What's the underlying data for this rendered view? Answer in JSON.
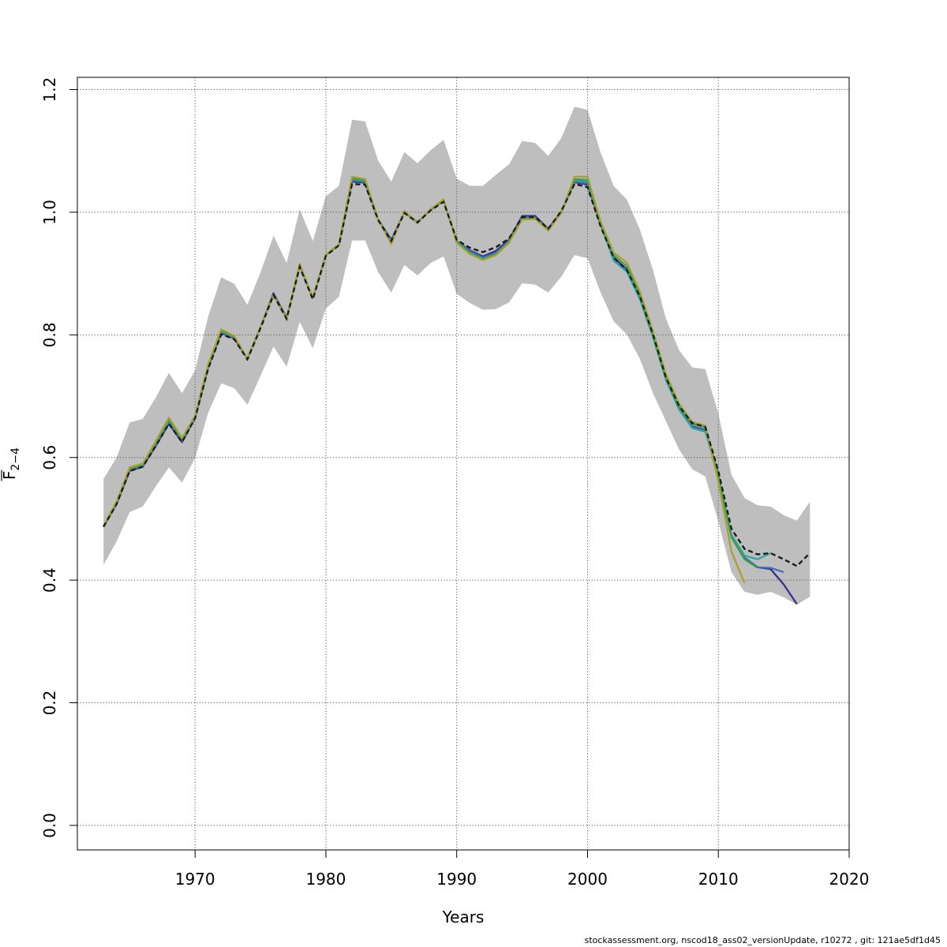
{
  "chart_data": {
    "type": "line",
    "xlabel": "Years",
    "ylabel_main": "F",
    "ylabel_sub": "2−4",
    "xlim": [
      1961,
      2020
    ],
    "ylim": [
      -0.04,
      1.22
    ],
    "x_ticks": [
      1970,
      1980,
      1990,
      2000,
      2010,
      2020
    ],
    "y_ticks": [
      0.0,
      0.2,
      0.4,
      0.6,
      0.8,
      1.0,
      1.2
    ],
    "x_tick_labels": [
      "1970",
      "1980",
      "1990",
      "2000",
      "2010",
      "2020"
    ],
    "y_tick_labels": [
      "0.0",
      "0.2",
      "0.4",
      "0.6",
      "0.8",
      "1.0",
      "1.2"
    ],
    "grid": true,
    "band_color": "#bebebe",
    "band": {
      "x": [
        1963,
        1964,
        1965,
        1966,
        1967,
        1968,
        1969,
        1970,
        1971,
        1972,
        1973,
        1974,
        1975,
        1976,
        1977,
        1978,
        1979,
        1980,
        1981,
        1982,
        1983,
        1984,
        1985,
        1986,
        1987,
        1988,
        1989,
        1990,
        1991,
        1992,
        1993,
        1994,
        1995,
        1996,
        1997,
        1998,
        1999,
        2000,
        2001,
        2002,
        2003,
        2004,
        2005,
        2006,
        2007,
        2008,
        2009,
        2010,
        2011,
        2012,
        2013,
        2014,
        2015,
        2016,
        2017
      ],
      "upper": [
        0.565,
        0.6,
        0.657,
        0.663,
        0.698,
        0.738,
        0.705,
        0.742,
        0.83,
        0.894,
        0.883,
        0.849,
        0.902,
        0.962,
        0.917,
        1.005,
        0.953,
        1.026,
        1.043,
        1.151,
        1.148,
        1.084,
        1.05,
        1.098,
        1.08,
        1.101,
        1.118,
        1.055,
        1.043,
        1.043,
        1.061,
        1.078,
        1.116,
        1.113,
        1.092,
        1.121,
        1.172,
        1.167,
        1.097,
        1.043,
        1.021,
        0.972,
        0.906,
        0.826,
        0.775,
        0.747,
        0.744,
        0.672,
        0.572,
        0.534,
        0.522,
        0.52,
        0.506,
        0.497,
        0.528
      ],
      "lower": [
        0.425,
        0.463,
        0.511,
        0.52,
        0.553,
        0.584,
        0.559,
        0.599,
        0.673,
        0.721,
        0.713,
        0.686,
        0.733,
        0.781,
        0.748,
        0.821,
        0.778,
        0.843,
        0.862,
        0.954,
        0.954,
        0.902,
        0.869,
        0.914,
        0.897,
        0.917,
        0.928,
        0.867,
        0.852,
        0.841,
        0.842,
        0.853,
        0.884,
        0.882,
        0.869,
        0.895,
        0.93,
        0.925,
        0.869,
        0.822,
        0.801,
        0.761,
        0.705,
        0.659,
        0.613,
        0.581,
        0.569,
        0.496,
        0.413,
        0.381,
        0.376,
        0.381,
        0.372,
        0.36,
        0.373
      ]
    },
    "series": [
      {
        "color": "#1a1a1a",
        "dashed": true,
        "width": 2.2,
        "x": [
          1963,
          1964,
          1965,
          1966,
          1967,
          1968,
          1969,
          1970,
          1971,
          1972,
          1973,
          1974,
          1975,
          1976,
          1977,
          1978,
          1979,
          1980,
          1981,
          1982,
          1983,
          1984,
          1985,
          1986,
          1987,
          1988,
          1989,
          1990,
          1991,
          1992,
          1993,
          1994,
          1995,
          1996,
          1997,
          1998,
          1999,
          2000,
          2001,
          2002,
          2003,
          2004,
          2005,
          2006,
          2007,
          2008,
          2009,
          2010,
          2011,
          2012,
          2013,
          2014,
          2015,
          2016,
          2017
        ],
        "y": [
          0.487,
          0.524,
          0.578,
          0.585,
          0.619,
          0.655,
          0.625,
          0.664,
          0.745,
          0.801,
          0.793,
          0.76,
          0.811,
          0.865,
          0.826,
          0.911,
          0.858,
          0.929,
          0.946,
          1.046,
          1.045,
          0.987,
          0.953,
          0.999,
          0.983,
          1.003,
          1.017,
          0.955,
          0.942,
          0.935,
          0.943,
          0.957,
          0.992,
          0.992,
          0.973,
          1.002,
          1.046,
          1.041,
          0.977,
          0.926,
          0.906,
          0.863,
          0.801,
          0.73,
          0.684,
          0.656,
          0.65,
          0.578,
          0.484,
          0.451,
          0.442,
          0.444,
          0.434,
          0.423,
          0.444
        ]
      },
      {
        "color": "#3a2a8c",
        "dashed": false,
        "width": 2.2,
        "x": [
          1963,
          1964,
          1965,
          1966,
          1967,
          1968,
          1969,
          1970,
          1971,
          1972,
          1973,
          1974,
          1975,
          1976,
          1977,
          1978,
          1979,
          1980,
          1981,
          1982,
          1983,
          1984,
          1985,
          1986,
          1987,
          1988,
          1989,
          1990,
          1991,
          1992,
          1993,
          1994,
          1995,
          1996,
          1997,
          1998,
          1999,
          2000,
          2001,
          2002,
          2003,
          2004,
          2005,
          2006,
          2007,
          2008,
          2009,
          2010,
          2011,
          2012,
          2013,
          2014,
          2015,
          2016
        ],
        "y": [
          0.487,
          0.524,
          0.578,
          0.585,
          0.619,
          0.655,
          0.625,
          0.664,
          0.747,
          0.803,
          0.794,
          0.761,
          0.813,
          0.868,
          0.828,
          0.913,
          0.86,
          0.93,
          0.947,
          1.05,
          1.048,
          0.988,
          0.955,
          1.0,
          0.984,
          1.004,
          1.019,
          0.953,
          0.938,
          0.928,
          0.937,
          0.955,
          0.994,
          0.994,
          0.973,
          1.001,
          1.049,
          1.045,
          0.979,
          0.926,
          0.907,
          0.862,
          0.799,
          0.727,
          0.68,
          0.651,
          0.645,
          0.57,
          0.47,
          0.437,
          0.421,
          0.418,
          0.393,
          0.361
        ]
      },
      {
        "color": "#3c6fb0",
        "dashed": false,
        "width": 2.2,
        "x": [
          1963,
          1964,
          1965,
          1966,
          1967,
          1968,
          1969,
          1970,
          1971,
          1972,
          1973,
          1974,
          1975,
          1976,
          1977,
          1978,
          1979,
          1980,
          1981,
          1982,
          1983,
          1984,
          1985,
          1986,
          1987,
          1988,
          1989,
          1990,
          1991,
          1992,
          1993,
          1994,
          1995,
          1996,
          1997,
          1998,
          1999,
          2000,
          2001,
          2002,
          2003,
          2004,
          2005,
          2006,
          2007,
          2008,
          2009,
          2010,
          2011,
          2012,
          2013,
          2014,
          2015
        ],
        "y": [
          0.487,
          0.525,
          0.579,
          0.586,
          0.621,
          0.658,
          0.627,
          0.665,
          0.748,
          0.804,
          0.795,
          0.761,
          0.813,
          0.866,
          0.827,
          0.913,
          0.86,
          0.93,
          0.947,
          1.052,
          1.049,
          0.988,
          0.953,
          1.001,
          0.984,
          1.004,
          1.019,
          0.953,
          0.937,
          0.926,
          0.934,
          0.953,
          0.992,
          0.992,
          0.972,
          1.0,
          1.05,
          1.047,
          0.979,
          0.923,
          0.905,
          0.86,
          0.798,
          0.727,
          0.679,
          0.65,
          0.644,
          0.57,
          0.47,
          0.437,
          0.421,
          0.42,
          0.413
        ]
      },
      {
        "color": "#2aa6a0",
        "dashed": false,
        "width": 2.2,
        "x": [
          1963,
          1964,
          1965,
          1966,
          1967,
          1968,
          1969,
          1970,
          1971,
          1972,
          1973,
          1974,
          1975,
          1976,
          1977,
          1978,
          1979,
          1980,
          1981,
          1982,
          1983,
          1984,
          1985,
          1986,
          1987,
          1988,
          1989,
          1990,
          1991,
          1992,
          1993,
          1994,
          1995,
          1996,
          1997,
          1998,
          1999,
          2000,
          2001,
          2002,
          2003,
          2004,
          2005,
          2006,
          2007,
          2008,
          2009,
          2010,
          2011,
          2012,
          2013,
          2014
        ],
        "y": [
          0.488,
          0.526,
          0.581,
          0.588,
          0.623,
          0.661,
          0.629,
          0.666,
          0.749,
          0.806,
          0.796,
          0.761,
          0.813,
          0.866,
          0.827,
          0.914,
          0.86,
          0.93,
          0.947,
          1.054,
          1.051,
          0.988,
          0.951,
          1.001,
          0.983,
          1.004,
          1.02,
          0.952,
          0.934,
          0.924,
          0.932,
          0.952,
          0.99,
          0.99,
          0.971,
          1.0,
          1.052,
          1.05,
          0.98,
          0.921,
          0.903,
          0.858,
          0.796,
          0.726,
          0.678,
          0.648,
          0.642,
          0.571,
          0.474,
          0.44,
          0.434,
          0.444
        ]
      },
      {
        "color": "#3f9a4a",
        "dashed": false,
        "width": 2.2,
        "x": [
          1963,
          1964,
          1965,
          1966,
          1967,
          1968,
          1969,
          1970,
          1971,
          1972,
          1973,
          1974,
          1975,
          1976,
          1977,
          1978,
          1979,
          1980,
          1981,
          1982,
          1983,
          1984,
          1985,
          1986,
          1987,
          1988,
          1989,
          1990,
          1991,
          1992,
          1993,
          1994,
          1995,
          1996,
          1997,
          1998,
          1999,
          2000,
          2001,
          2002,
          2003,
          2004,
          2005,
          2006,
          2007,
          2008,
          2009,
          2010,
          2011,
          2012,
          2013
        ],
        "y": [
          0.488,
          0.527,
          0.582,
          0.589,
          0.625,
          0.663,
          0.63,
          0.667,
          0.75,
          0.807,
          0.797,
          0.761,
          0.813,
          0.866,
          0.827,
          0.914,
          0.86,
          0.93,
          0.947,
          1.055,
          1.052,
          0.988,
          0.95,
          1.001,
          0.983,
          1.004,
          1.02,
          0.951,
          0.933,
          0.923,
          0.931,
          0.951,
          0.989,
          0.99,
          0.971,
          1.0,
          1.054,
          1.053,
          0.982,
          0.93,
          0.912,
          0.866,
          0.8,
          0.731,
          0.683,
          0.655,
          0.649,
          0.573,
          0.47,
          0.434,
          0.42
        ]
      },
      {
        "color": "#a8a02c",
        "dashed": false,
        "width": 2.2,
        "x": [
          1963,
          1964,
          1965,
          1966,
          1967,
          1968,
          1969,
          1970,
          1971,
          1972,
          1973,
          1974,
          1975,
          1976,
          1977,
          1978,
          1979,
          1980,
          1981,
          1982,
          1983,
          1984,
          1985,
          1986,
          1987,
          1988,
          1989,
          1990,
          1991,
          1992,
          1993,
          1994,
          1995,
          1996,
          1997,
          1998,
          1999,
          2000,
          2001,
          2002,
          2003,
          2004,
          2005,
          2006,
          2007,
          2008,
          2009,
          2010,
          2011,
          2012
        ],
        "y": [
          0.489,
          0.528,
          0.584,
          0.59,
          0.627,
          0.665,
          0.632,
          0.668,
          0.752,
          0.809,
          0.798,
          0.761,
          0.813,
          0.865,
          0.826,
          0.916,
          0.86,
          0.931,
          0.948,
          1.058,
          1.054,
          0.988,
          0.948,
          1.002,
          0.983,
          1.005,
          1.021,
          0.95,
          0.932,
          0.922,
          0.93,
          0.95,
          0.988,
          0.989,
          0.97,
          0.999,
          1.058,
          1.058,
          0.985,
          0.934,
          0.918,
          0.871,
          0.806,
          0.736,
          0.688,
          0.658,
          0.652,
          0.561,
          0.447,
          0.395
        ]
      }
    ]
  },
  "footer": {
    "text": "stockassessment.org, nscod18_ass02_versionUpdate, r10272 , git: 121ae5df1d45"
  }
}
